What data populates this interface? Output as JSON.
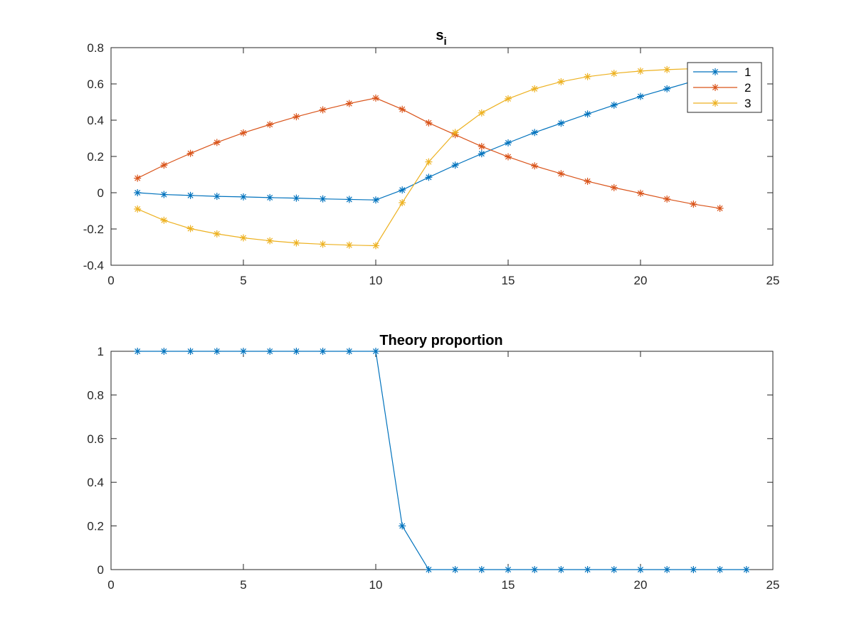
{
  "chart_data": [
    {
      "type": "line",
      "title": "s",
      "title_subscript": "i",
      "xlabel": "",
      "ylabel": "",
      "xlim": [
        0,
        25
      ],
      "ylim": [
        -0.4,
        0.8
      ],
      "xticks": [
        "0",
        "5",
        "10",
        "15",
        "20",
        "25"
      ],
      "yticks": [
        "-0.4",
        "-0.2",
        "0",
        "0.2",
        "0.4",
        "0.6",
        "0.8"
      ],
      "grid": false,
      "legend": "top-right",
      "marker": "asterisk",
      "series": [
        {
          "name": "1",
          "color": "#0072bd",
          "x": [
            1,
            2,
            3,
            4,
            5,
            6,
            7,
            8,
            9,
            10,
            11,
            12,
            13,
            14,
            15,
            16,
            17,
            18,
            19,
            20,
            21,
            22,
            23,
            24
          ],
          "values": [
            0.0,
            -0.01,
            -0.015,
            -0.02,
            -0.023,
            -0.027,
            -0.03,
            -0.034,
            -0.037,
            -0.04,
            0.015,
            0.085,
            0.152,
            0.215,
            0.275,
            0.332,
            0.383,
            0.434,
            0.483,
            0.531,
            0.573,
            0.615,
            0.655,
            0.695
          ]
        },
        {
          "name": "2",
          "color": "#d95319",
          "x": [
            1,
            2,
            3,
            4,
            5,
            6,
            7,
            8,
            9,
            10,
            11,
            12,
            13,
            14,
            15,
            16,
            17,
            18,
            19,
            20,
            21,
            22,
            23
          ],
          "values": [
            0.08,
            0.152,
            0.217,
            0.277,
            0.33,
            0.376,
            0.419,
            0.457,
            0.492,
            0.522,
            0.46,
            0.385,
            0.32,
            0.255,
            0.198,
            0.148,
            0.105,
            0.063,
            0.028,
            -0.003,
            -0.035,
            -0.063,
            -0.086
          ]
        },
        {
          "name": "3",
          "color": "#edb120",
          "x": [
            1,
            2,
            3,
            4,
            5,
            6,
            7,
            8,
            9,
            10,
            11,
            12,
            13,
            14,
            15,
            16,
            17,
            18,
            19,
            20,
            21,
            22,
            23
          ],
          "values": [
            -0.09,
            -0.152,
            -0.198,
            -0.227,
            -0.249,
            -0.265,
            -0.277,
            -0.284,
            -0.289,
            -0.292,
            -0.055,
            0.17,
            0.332,
            0.44,
            0.518,
            0.573,
            0.612,
            0.64,
            0.658,
            0.671,
            0.679,
            0.684,
            0.688
          ]
        }
      ]
    },
    {
      "type": "line",
      "title": "Theory proportion",
      "xlabel": "",
      "ylabel": "",
      "xlim": [
        0,
        25
      ],
      "ylim": [
        0,
        1
      ],
      "xticks": [
        "0",
        "5",
        "10",
        "15",
        "20",
        "25"
      ],
      "yticks": [
        "0",
        "0.2",
        "0.4",
        "0.6",
        "0.8",
        "1"
      ],
      "grid": false,
      "marker": "asterisk",
      "series": [
        {
          "color": "#0072bd",
          "x": [
            1,
            2,
            3,
            4,
            5,
            6,
            7,
            8,
            9,
            10,
            11,
            12,
            13,
            14,
            15,
            16,
            17,
            18,
            19,
            20,
            21,
            22,
            23,
            24
          ],
          "values": [
            1,
            1,
            1,
            1,
            1,
            1,
            1,
            1,
            1,
            1,
            0.2,
            0,
            0,
            0,
            0,
            0,
            0,
            0,
            0,
            0,
            0,
            0,
            0,
            0
          ]
        }
      ]
    }
  ]
}
